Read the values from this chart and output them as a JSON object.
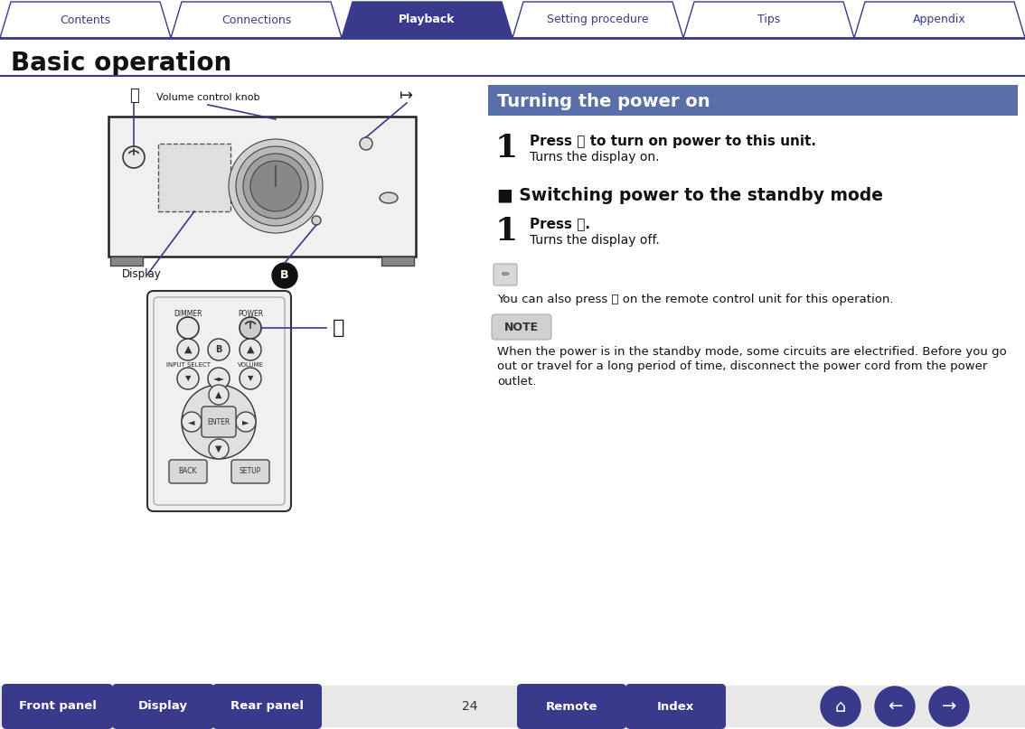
{
  "bg_color": "#ffffff",
  "tab_bg": "#ffffff",
  "tab_active_bg": "#3a3a8c",
  "tab_border": "#3a3a8c",
  "tab_labels": [
    "Contents",
    "Connections",
    "Playback",
    "Setting procedure",
    "Tips",
    "Appendix"
  ],
  "tab_active_index": 2,
  "tab_text_color": "#3a3a8c",
  "tab_active_text_color": "#ffffff",
  "title_bar_text": "Basic operation",
  "section_header_bg": "#5a6faa",
  "section_header_text": "Turning the power on",
  "section_header_text_color": "#ffffff",
  "divider_color": "#3a3a8c",
  "step1_bold": "Press ⏻ to turn on power to this unit.",
  "step1_normal": "Turns the display on.",
  "section2_header": "■ Switching power to the standby mode",
  "step2_bold": "Press ⏻.",
  "step2_normal": "Turns the display off.",
  "note_label": "NOTE",
  "note_text": "When the power is in the standby mode, some circuits are electrified. Before you go\nout or travel for a long period of time, disconnect the power cord from the power\noutlet.",
  "pencil_note": "You can also press ⏻ on the remote control unit for this operation.",
  "bottom_buttons": [
    "Front panel",
    "Display",
    "Rear panel",
    "Remote",
    "Index"
  ],
  "bottom_btn_bg": "#3a3a8c",
  "bottom_btn_text_color": "#ffffff",
  "page_number": "24",
  "volume_knob_label": "Volume control knob",
  "display_label": "Display"
}
